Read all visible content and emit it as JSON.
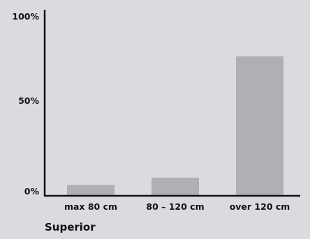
{
  "chart_data": {
    "type": "bar",
    "categories": [
      "max 80 cm",
      "80 – 120 cm",
      "over 120 cm"
    ],
    "values": [
      6,
      10,
      77
    ],
    "ylim": [
      0,
      100
    ],
    "y_tick_labels": [
      "0%",
      "50%",
      "100%"
    ],
    "y_ticks": [
      0,
      50,
      100
    ],
    "caption": "Superior",
    "grid": false,
    "legend": "none"
  },
  "colors": {
    "background": "#d9dbdf",
    "bar": "#aeb0b3",
    "axis": "#111111",
    "text": "#111111"
  }
}
